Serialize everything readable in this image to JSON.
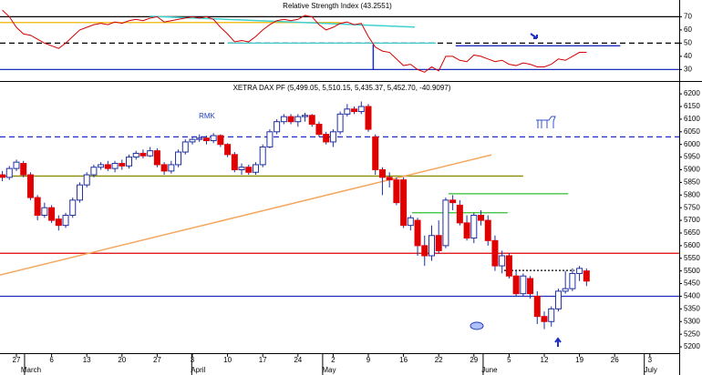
{
  "chart_data": [
    {
      "type": "line",
      "title": "Relative Strength Index (43.2551)",
      "xlim": [
        -0.33,
        96.17
      ],
      "ylim": [
        22,
        82
      ],
      "yticks": [
        30,
        40,
        50,
        60,
        70
      ],
      "series": [
        {
          "color": "#d40000",
          "values": [
            75,
            70,
            62,
            57,
            56,
            53,
            50,
            48,
            46,
            50,
            55,
            60,
            62,
            64,
            65,
            64,
            66,
            65,
            67,
            68,
            67,
            69,
            70,
            66,
            67,
            68,
            69,
            70,
            69,
            70,
            68,
            62,
            57,
            51,
            52,
            51,
            55,
            60,
            64,
            67,
            68,
            67,
            68,
            71,
            70,
            64,
            60,
            62,
            65,
            66,
            64,
            65,
            55,
            47,
            44,
            43,
            38,
            33,
            34,
            30,
            28,
            32,
            29,
            40,
            40,
            37,
            36,
            41,
            40,
            38,
            36,
            37,
            34,
            33,
            35,
            34,
            32,
            32,
            34,
            38,
            37,
            40,
            43,
            43
          ]
        }
      ],
      "levels": [
        {
          "value": 70,
          "color": "#000000",
          "style": "solid"
        },
        {
          "value": 50,
          "color": "#000000",
          "style": "dash"
        },
        {
          "value": 30,
          "color": "#1f2fbf",
          "style": "solid"
        },
        {
          "value": 65.6,
          "color": "#f0b400",
          "style": "solid",
          "from": -0.33,
          "to": 48
        },
        {
          "value": 50,
          "color": "#40c8c8",
          "style": "solid",
          "from": 32,
          "to": 61.6
        },
        {
          "value": 48,
          "color": "#1f2fbf",
          "style": "solid",
          "from": 64.4,
          "to": 87.8
        }
      ],
      "trendlines": [
        {
          "color": "#40d0d0",
          "points": [
            [
              20.9,
              70.4
            ],
            [
              58.6,
              62.2
            ]
          ]
        },
        {
          "color": "#1f2fbf",
          "points": [
            [
              52.7,
              49
            ],
            [
              52.7,
              30
            ]
          ]
        }
      ]
    },
    {
      "type": "candlestick",
      "title": "XETRA DAX PF (5,499.05, 5,510.15, 5,435.37, 5,452.70, -40.9097)",
      "annotation": "RMK",
      "xlim": [
        -0.33,
        96.17
      ],
      "ylim": [
        5175,
        6240
      ],
      "yticks": [
        5200,
        5250,
        5300,
        5350,
        5400,
        5450,
        5500,
        5550,
        5600,
        5650,
        5700,
        5750,
        5800,
        5850,
        5900,
        5950,
        6000,
        6050,
        6100,
        6150,
        6200
      ],
      "xticks": [
        {
          "value": 2,
          "label": "27"
        },
        {
          "value": 7,
          "label": "6"
        },
        {
          "value": 12,
          "label": "13"
        },
        {
          "value": 17,
          "label": "20"
        },
        {
          "value": 22,
          "label": "27"
        },
        {
          "value": 27,
          "label": "3"
        },
        {
          "value": 32,
          "label": "10"
        },
        {
          "value": 37,
          "label": "17"
        },
        {
          "value": 42,
          "label": "24"
        },
        {
          "value": 47,
          "label": "2"
        },
        {
          "value": 52,
          "label": "9"
        },
        {
          "value": 57,
          "label": "16"
        },
        {
          "value": 62,
          "label": "22"
        },
        {
          "value": 67,
          "label": "29"
        },
        {
          "value": 72,
          "label": "5"
        },
        {
          "value": 77,
          "label": "12"
        },
        {
          "value": 82,
          "label": "19"
        },
        {
          "value": 87,
          "label": "26"
        },
        {
          "value": 92,
          "label": "3"
        }
      ],
      "months": [
        {
          "value": 3.55,
          "label": "March"
        },
        {
          "value": 27.3,
          "label": "April"
        },
        {
          "value": 45.9,
          "label": "May"
        },
        {
          "value": 68.7,
          "label": "June"
        },
        {
          "value": 91.6,
          "label": "July"
        }
      ],
      "up_color": "#ffffff",
      "down_color": "#e00000",
      "outline_color": "#1f2f9f",
      "open": [
        5880,
        5870,
        5905,
        5925,
        5880,
        5790,
        5720,
        5750,
        5705,
        5680,
        5720,
        5780,
        5840,
        5880,
        5910,
        5920,
        5905,
        5925,
        5915,
        5950,
        5965,
        5955,
        5975,
        5920,
        5895,
        5920,
        5970,
        6010,
        6020,
        6025,
        6015,
        6035,
        6000,
        5960,
        5900,
        5910,
        5890,
        5920,
        5990,
        6050,
        6090,
        6110,
        6090,
        6110,
        6115,
        6080,
        6040,
        6010,
        6050,
        6120,
        6140,
        6130,
        6150,
        6030,
        5900,
        5870,
        5860,
        5860,
        5680,
        5700,
        5600,
        5560,
        5640,
        5600,
        5780,
        5760,
        5690,
        5630,
        5720,
        5700,
        5620,
        5520,
        5560,
        5480,
        5410,
        5470,
        5400,
        5320,
        5300,
        5350,
        5420,
        5430,
        5490,
        5500
      ],
      "high": [
        5895,
        5915,
        5940,
        5935,
        5890,
        5800,
        5770,
        5760,
        5720,
        5730,
        5790,
        5850,
        5890,
        5920,
        5930,
        5935,
        5935,
        5940,
        5960,
        5975,
        5980,
        5990,
        5985,
        5930,
        5935,
        5980,
        6020,
        6030,
        6040,
        6035,
        6045,
        6040,
        6005,
        5970,
        5925,
        5920,
        5930,
        6000,
        6060,
        6100,
        6120,
        6120,
        6120,
        6125,
        6120,
        6090,
        6050,
        6060,
        6130,
        6160,
        6150,
        6170,
        6160,
        6040,
        5910,
        5890,
        5870,
        5870,
        5720,
        5710,
        5640,
        5680,
        5700,
        5790,
        5800,
        5780,
        5720,
        5730,
        5740,
        5720,
        5640,
        5580,
        5570,
        5500,
        5490,
        5480,
        5420,
        5340,
        5360,
        5430,
        5500,
        5510,
        5520,
        5510
      ],
      "low": [
        5855,
        5860,
        5895,
        5870,
        5780,
        5700,
        5710,
        5690,
        5660,
        5670,
        5710,
        5770,
        5830,
        5870,
        5900,
        5895,
        5890,
        5900,
        5905,
        5940,
        5945,
        5950,
        5910,
        5880,
        5885,
        5910,
        5960,
        6000,
        6010,
        6000,
        6005,
        5990,
        5950,
        5890,
        5880,
        5880,
        5880,
        5910,
        5985,
        6040,
        6080,
        6080,
        6070,
        6090,
        6070,
        6030,
        6000,
        5990,
        6040,
        6110,
        6120,
        6120,
        6050,
        5880,
        5800,
        5830,
        5760,
        5670,
        5660,
        5560,
        5520,
        5540,
        5570,
        5590,
        5740,
        5680,
        5620,
        5610,
        5680,
        5600,
        5500,
        5490,
        5470,
        5400,
        5400,
        5390,
        5290,
        5270,
        5280,
        5340,
        5410,
        5420,
        5460,
        5440
      ],
      "close": [
        5870,
        5905,
        5930,
        5880,
        5790,
        5720,
        5750,
        5700,
        5680,
        5720,
        5780,
        5840,
        5880,
        5910,
        5920,
        5905,
        5925,
        5915,
        5950,
        5965,
        5955,
        5975,
        5920,
        5895,
        5920,
        5970,
        6010,
        6020,
        6025,
        6015,
        6035,
        6000,
        5960,
        5900,
        5910,
        5890,
        5920,
        5990,
        6050,
        6090,
        6110,
        6090,
        6110,
        6115,
        6080,
        6040,
        6010,
        6050,
        6120,
        6140,
        6130,
        6150,
        6060,
        5900,
        5870,
        5860,
        5770,
        5680,
        5710,
        5600,
        5560,
        5640,
        5580,
        5780,
        5770,
        5690,
        5630,
        5720,
        5700,
        5620,
        5520,
        5560,
        5480,
        5410,
        5480,
        5410,
        5320,
        5300,
        5350,
        5420,
        5430,
        5490,
        5510,
        5460
      ],
      "levels": [
        {
          "value": 6030,
          "color": "#1f2fbf",
          "style": "dash"
        },
        {
          "value": 5875,
          "color": "#8c8c00",
          "style": "solid",
          "from": -0.33,
          "to": 74
        },
        {
          "value": 5570,
          "color": "#e00000",
          "style": "solid"
        },
        {
          "value": 5400,
          "color": "#1f2fbf",
          "style": "solid"
        },
        {
          "value": 5805,
          "color": "#30c030",
          "style": "solid",
          "from": 63.4,
          "to": 80.4
        },
        {
          "value": 5730,
          "color": "#30c030",
          "style": "solid",
          "from": 58.2,
          "to": 71.8
        },
        {
          "value": 5502,
          "color": "#000000",
          "style": "dot",
          "from": 71.3,
          "to": 81.3
        }
      ],
      "trendlines": [
        {
          "color": "#f4a860",
          "points": [
            [
              -0.33,
              5484
            ],
            [
              69.5,
              5959
            ]
          ]
        }
      ]
    }
  ]
}
